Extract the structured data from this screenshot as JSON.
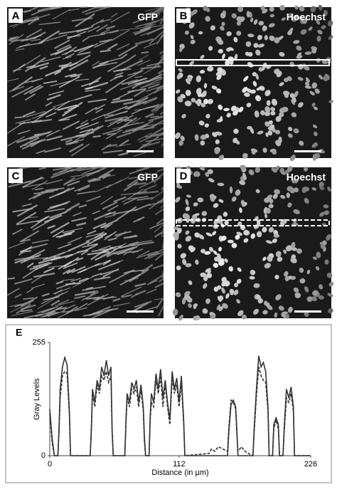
{
  "panels": [
    {
      "letter": "A",
      "label": "GFP"
    },
    {
      "letter": "B",
      "label": "Hoechst"
    },
    {
      "letter": "C",
      "label": "GFP"
    },
    {
      "letter": "D",
      "label": "Hoechst"
    }
  ],
  "chart_data": {
    "type": "line",
    "panel_label": "E",
    "x_label": "Distance (in µm)",
    "y_label": "Gray Levels",
    "x": [
      0,
      2,
      4,
      7,
      8,
      9,
      11,
      13,
      15,
      17,
      18,
      35,
      36,
      37,
      39,
      41,
      43,
      45,
      47,
      49,
      51,
      53,
      54,
      55,
      65,
      66,
      67,
      69,
      71,
      73,
      75,
      77,
      79,
      81,
      82,
      83,
      86,
      87,
      88,
      90,
      92,
      94,
      96,
      98,
      100,
      102,
      104,
      106,
      108,
      110,
      112,
      114,
      116,
      117,
      138,
      140,
      143,
      146,
      150,
      154,
      155,
      157,
      159,
      161,
      162,
      163,
      166,
      169,
      172,
      176,
      177,
      179,
      181,
      183,
      185,
      187,
      189,
      190,
      193,
      194,
      196,
      198,
      199,
      202,
      203,
      205,
      207,
      209,
      211,
      212,
      226
    ],
    "series": [
      {
        "color": "#333333",
        "line_style": "solid",
        "values": [
          105,
          40,
          0,
          0,
          60,
          150,
          200,
          221,
          205,
          100,
          0,
          0,
          60,
          150,
          120,
          170,
          150,
          200,
          180,
          215,
          180,
          200,
          60,
          0,
          0,
          80,
          140,
          120,
          165,
          150,
          170,
          120,
          160,
          110,
          40,
          0,
          0,
          90,
          140,
          120,
          185,
          150,
          195,
          130,
          170,
          120,
          80,
          190,
          150,
          175,
          120,
          180,
          80,
          0,
          0,
          0,
          0,
          0,
          0,
          0,
          50,
          115,
          125,
          110,
          60,
          0,
          0,
          0,
          0,
          0,
          60,
          150,
          225,
          200,
          210,
          190,
          110,
          0,
          0,
          70,
          85,
          70,
          0,
          0,
          60,
          150,
          130,
          155,
          110,
          0,
          0
        ]
      },
      {
        "color": "#333333",
        "line_style": "dashed",
        "values": [
          95,
          30,
          0,
          0,
          50,
          130,
          180,
          190,
          185,
          90,
          0,
          0,
          50,
          140,
          110,
          160,
          140,
          180,
          170,
          190,
          165,
          180,
          50,
          0,
          0,
          70,
          130,
          110,
          150,
          140,
          155,
          110,
          150,
          100,
          30,
          0,
          0,
          80,
          120,
          110,
          170,
          140,
          180,
          110,
          160,
          110,
          70,
          175,
          140,
          160,
          110,
          165,
          70,
          0,
          5,
          15,
          10,
          20,
          15,
          10,
          60,
          125,
          120,
          105,
          50,
          10,
          20,
          10,
          5,
          0,
          50,
          135,
          200,
          180,
          170,
          165,
          100,
          0,
          0,
          60,
          80,
          60,
          0,
          0,
          50,
          130,
          120,
          140,
          100,
          0,
          0
        ]
      }
    ],
    "xlim": [
      0,
      226
    ],
    "ylim": [
      0,
      255
    ],
    "xticks": [
      0,
      112,
      226
    ],
    "yticks": [
      0,
      255
    ]
  }
}
